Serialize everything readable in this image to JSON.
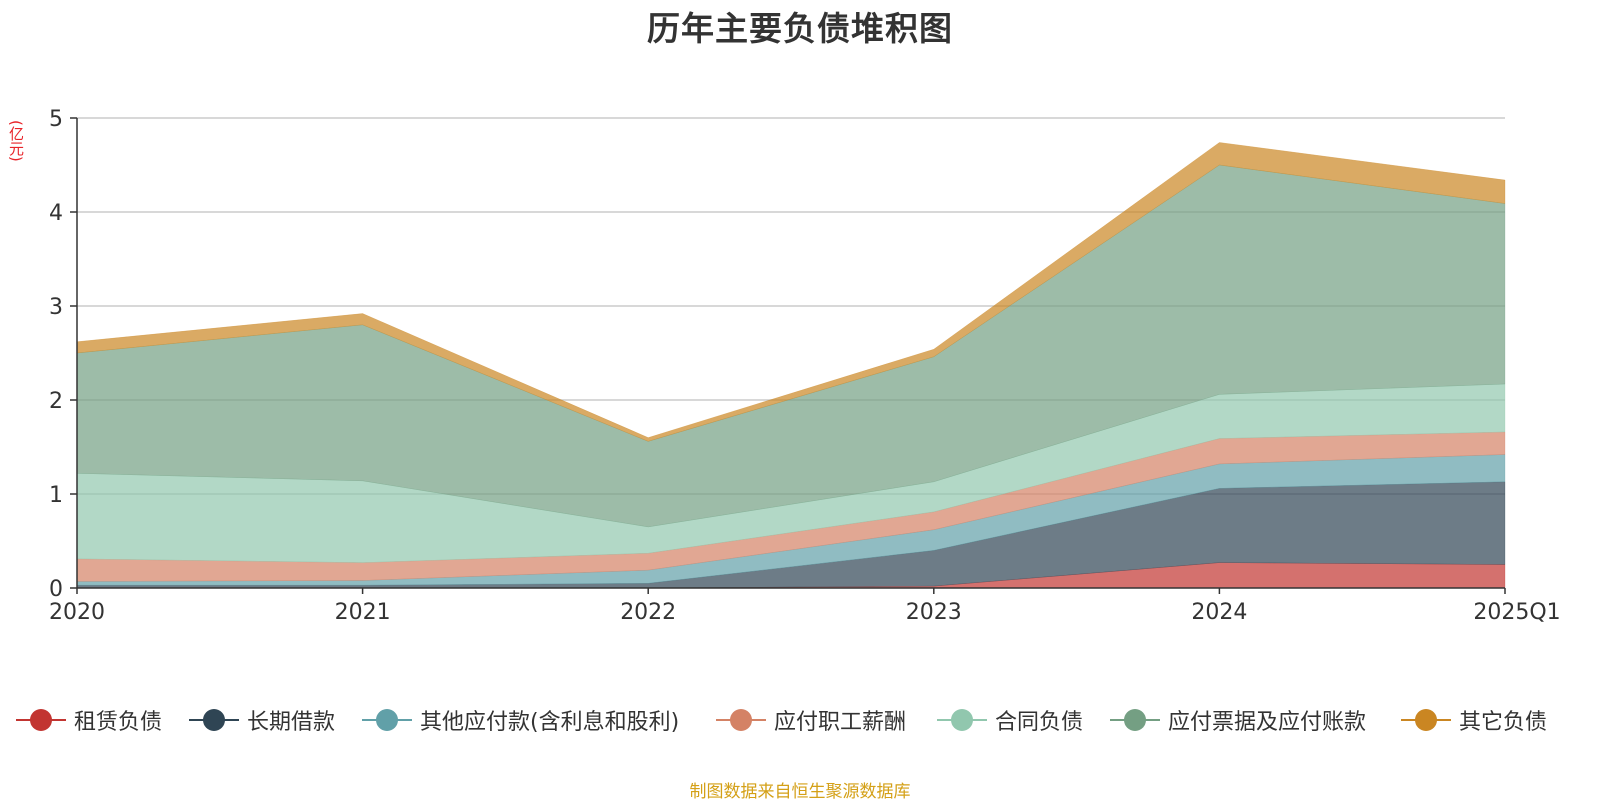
{
  "title": "历年主要负债堆积图",
  "unit_label": "(亿元)",
  "source_note": "制图数据来自恒生聚源数据库",
  "chart_data": {
    "type": "area",
    "stacked": true,
    "title": "历年主要负债堆积图",
    "ylabel": "(亿元)",
    "ylim": [
      0,
      5
    ],
    "yticks": [
      0,
      1,
      2,
      3,
      4,
      5
    ],
    "categories": [
      "2020",
      "2021",
      "2022",
      "2023",
      "2024",
      "2025Q1"
    ],
    "grid": true,
    "legend_position": "bottom",
    "series": [
      {
        "name": "租赁负债",
        "color": "#c23531",
        "values": [
          0.0,
          0.0,
          0.0,
          0.02,
          0.27,
          0.25
        ]
      },
      {
        "name": "长期借款",
        "color": "#2f4554",
        "values": [
          0.03,
          0.03,
          0.05,
          0.38,
          0.79,
          0.88
        ]
      },
      {
        "name": "其他应付款(含利息和股利)",
        "color": "#61a0a8",
        "values": [
          0.04,
          0.05,
          0.14,
          0.22,
          0.26,
          0.29
        ]
      },
      {
        "name": "应付职工薪酬",
        "color": "#d48265",
        "values": [
          0.24,
          0.19,
          0.18,
          0.19,
          0.27,
          0.24
        ]
      },
      {
        "name": "合同负债",
        "color": "#91c7ae",
        "values": [
          0.91,
          0.87,
          0.28,
          0.32,
          0.47,
          0.51
        ]
      },
      {
        "name": "应付票据及应付账款",
        "color": "#749f83",
        "values": [
          1.28,
          1.66,
          0.91,
          1.33,
          2.44,
          1.92
        ]
      },
      {
        "name": "其它负债",
        "color": "#ca8622",
        "values": [
          0.12,
          0.12,
          0.04,
          0.08,
          0.24,
          0.25
        ]
      }
    ]
  }
}
